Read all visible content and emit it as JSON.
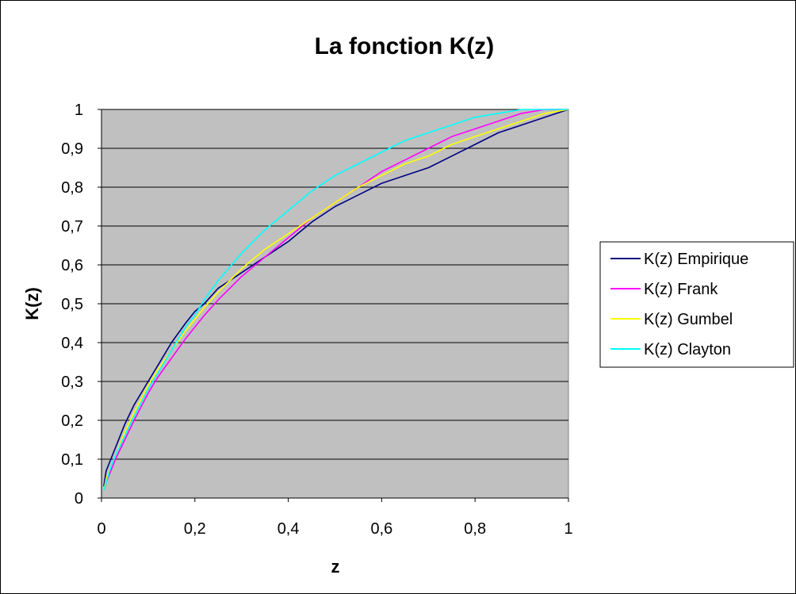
{
  "chart_data": {
    "type": "line",
    "title": "La fonction K(z)",
    "xlabel": "z",
    "ylabel": "K(z)",
    "xlim": [
      0,
      1
    ],
    "ylim": [
      0,
      1
    ],
    "x_ticks": [
      "0",
      "0,2",
      "0,4",
      "0,6",
      "0,8",
      "1"
    ],
    "x_tick_values": [
      0,
      0.2,
      0.4,
      0.6,
      0.8,
      1
    ],
    "y_ticks": [
      "0",
      "0,1",
      "0,2",
      "0,3",
      "0,4",
      "0,5",
      "0,6",
      "0,7",
      "0,8",
      "0,9",
      "1"
    ],
    "y_tick_values": [
      0,
      0.1,
      0.2,
      0.3,
      0.4,
      0.5,
      0.6,
      0.7,
      0.8,
      0.9,
      1
    ],
    "grid": "horizontal",
    "plot_background": "#c0c0c0",
    "legend_position": "right",
    "series": [
      {
        "name": "K(z) Empirique",
        "color": "#000080",
        "x": [
          0.005,
          0.01,
          0.02,
          0.03,
          0.05,
          0.07,
          0.1,
          0.12,
          0.15,
          0.18,
          0.2,
          0.22,
          0.25,
          0.3,
          0.35,
          0.4,
          0.45,
          0.5,
          0.55,
          0.6,
          0.65,
          0.7,
          0.75,
          0.8,
          0.85,
          0.9,
          0.95,
          1.0
        ],
        "y": [
          0.03,
          0.07,
          0.1,
          0.13,
          0.19,
          0.24,
          0.3,
          0.34,
          0.4,
          0.45,
          0.48,
          0.5,
          0.54,
          0.58,
          0.62,
          0.66,
          0.71,
          0.75,
          0.78,
          0.81,
          0.83,
          0.85,
          0.88,
          0.91,
          0.94,
          0.96,
          0.98,
          1.0
        ]
      },
      {
        "name": "K(z) Frank",
        "color": "#ff00ff",
        "x": [
          0.005,
          0.01,
          0.02,
          0.03,
          0.05,
          0.07,
          0.1,
          0.12,
          0.15,
          0.18,
          0.2,
          0.22,
          0.25,
          0.3,
          0.35,
          0.4,
          0.45,
          0.5,
          0.55,
          0.6,
          0.65,
          0.7,
          0.75,
          0.8,
          0.85,
          0.9,
          0.95,
          1.0
        ],
        "y": [
          0.02,
          0.04,
          0.07,
          0.1,
          0.15,
          0.2,
          0.27,
          0.31,
          0.36,
          0.41,
          0.44,
          0.47,
          0.51,
          0.57,
          0.62,
          0.67,
          0.72,
          0.76,
          0.8,
          0.84,
          0.87,
          0.9,
          0.93,
          0.95,
          0.97,
          0.99,
          1.0,
          1.0
        ]
      },
      {
        "name": "K(z) Gumbel",
        "color": "#ffff00",
        "x": [
          0.005,
          0.01,
          0.02,
          0.03,
          0.05,
          0.07,
          0.1,
          0.12,
          0.15,
          0.18,
          0.2,
          0.22,
          0.25,
          0.3,
          0.35,
          0.4,
          0.45,
          0.5,
          0.55,
          0.6,
          0.65,
          0.7,
          0.75,
          0.8,
          0.85,
          0.9,
          0.95,
          1.0
        ],
        "y": [
          0.02,
          0.05,
          0.08,
          0.11,
          0.17,
          0.22,
          0.29,
          0.33,
          0.38,
          0.43,
          0.46,
          0.49,
          0.53,
          0.59,
          0.64,
          0.68,
          0.72,
          0.76,
          0.8,
          0.83,
          0.86,
          0.88,
          0.91,
          0.93,
          0.95,
          0.97,
          0.99,
          1.0
        ]
      },
      {
        "name": "K(z) Clayton",
        "color": "#00ffff",
        "x": [
          0.005,
          0.01,
          0.02,
          0.03,
          0.05,
          0.07,
          0.1,
          0.12,
          0.15,
          0.18,
          0.2,
          0.22,
          0.25,
          0.3,
          0.35,
          0.4,
          0.45,
          0.5,
          0.55,
          0.6,
          0.65,
          0.7,
          0.75,
          0.8,
          0.85,
          0.9,
          0.95,
          1.0
        ],
        "y": [
          0.02,
          0.04,
          0.08,
          0.11,
          0.16,
          0.21,
          0.28,
          0.32,
          0.38,
          0.44,
          0.47,
          0.51,
          0.56,
          0.63,
          0.69,
          0.74,
          0.79,
          0.83,
          0.86,
          0.89,
          0.92,
          0.94,
          0.96,
          0.98,
          0.99,
          1.0,
          1.0,
          1.0
        ]
      }
    ]
  }
}
